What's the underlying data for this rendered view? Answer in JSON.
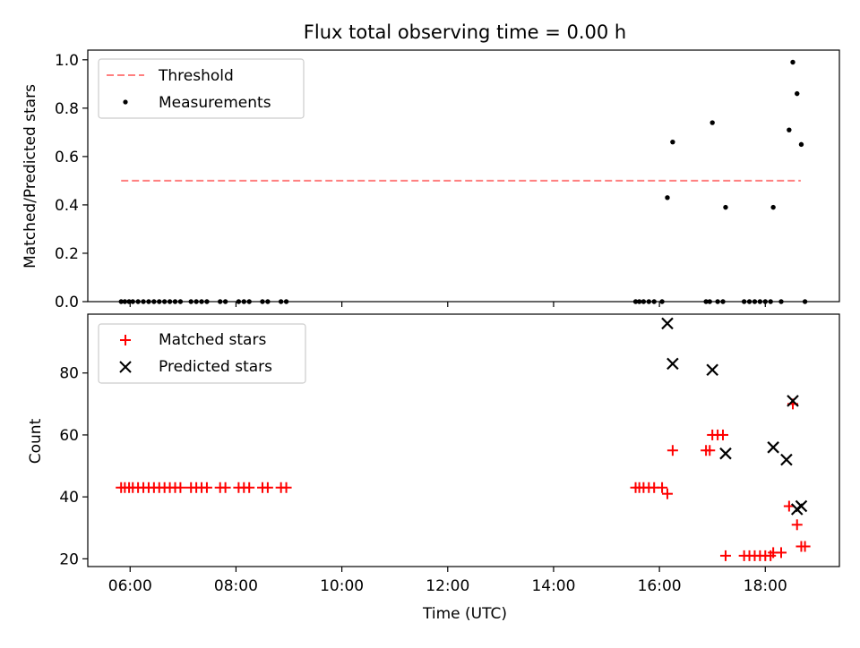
{
  "figure": {
    "title": "Flux total observing time = 0.00 h",
    "xlabel": "Time (UTC)",
    "xticks": [
      "06:00",
      "08:00",
      "10:00",
      "12:00",
      "14:00",
      "16:00",
      "18:00"
    ]
  },
  "chart_data": [
    {
      "type": "scatter",
      "ylabel": "Matched/Predicted stars",
      "xlim_hours": [
        5.2,
        19.4
      ],
      "ylim": [
        0,
        1.04
      ],
      "yticks": [
        "0.0",
        "0.2",
        "0.4",
        "0.6",
        "0.8",
        "1.0"
      ],
      "legend_position": "top-left",
      "threshold": {
        "name": "Threshold",
        "y": 0.5,
        "x_range_hours": [
          5.83,
          18.67
        ],
        "color": "#ff7f7f"
      },
      "series": [
        {
          "name": "Measurements",
          "marker": "dot",
          "color": "#000000",
          "x_hours": [
            5.83,
            5.9,
            5.98,
            6.05,
            6.15,
            6.25,
            6.35,
            6.45,
            6.55,
            6.65,
            6.75,
            6.85,
            6.95,
            7.15,
            7.25,
            7.35,
            7.45,
            7.7,
            7.8,
            8.05,
            8.15,
            8.25,
            8.5,
            8.6,
            8.85,
            8.95,
            15.55,
            15.62,
            15.7,
            15.8,
            15.9,
            16.05,
            16.15,
            16.25,
            16.88,
            16.95,
            17.0,
            17.1,
            17.2,
            17.25,
            17.6,
            17.7,
            17.8,
            17.9,
            18.0,
            18.1,
            18.15,
            18.3,
            18.45,
            18.52,
            18.6,
            18.68,
            18.75
          ],
          "y": [
            0,
            0,
            0,
            0,
            0,
            0,
            0,
            0,
            0,
            0,
            0,
            0,
            0,
            0,
            0,
            0,
            0,
            0,
            0,
            0,
            0,
            0,
            0,
            0,
            0,
            0,
            0,
            0,
            0,
            0,
            0,
            0,
            0.43,
            0.66,
            0,
            0,
            0.74,
            0,
            0,
            0.39,
            0,
            0,
            0,
            0,
            0,
            0,
            0.39,
            0,
            0.71,
            0.99,
            0.86,
            0.65,
            0
          ]
        }
      ]
    },
    {
      "type": "scatter",
      "ylabel": "Count",
      "xlim_hours": [
        5.2,
        19.4
      ],
      "ylim": [
        17.5,
        99
      ],
      "yticks": [
        "20",
        "40",
        "60",
        "80"
      ],
      "legend_position": "top-left",
      "series": [
        {
          "name": "Matched stars",
          "marker": "plus",
          "color": "#ff0000",
          "x_hours": [
            5.83,
            5.9,
            5.98,
            6.05,
            6.15,
            6.25,
            6.35,
            6.45,
            6.55,
            6.65,
            6.75,
            6.85,
            6.95,
            7.15,
            7.25,
            7.35,
            7.45,
            7.7,
            7.8,
            8.05,
            8.15,
            8.25,
            8.5,
            8.6,
            8.85,
            8.95,
            15.55,
            15.62,
            15.7,
            15.8,
            15.9,
            16.05,
            16.15,
            16.25,
            16.88,
            16.95,
            17.0,
            17.1,
            17.2,
            17.25,
            17.6,
            17.7,
            17.8,
            17.9,
            18.0,
            18.1,
            18.15,
            18.3,
            18.45,
            18.52,
            18.6,
            18.68,
            18.75
          ],
          "y": [
            43,
            43,
            43,
            43,
            43,
            43,
            43,
            43,
            43,
            43,
            43,
            43,
            43,
            43,
            43,
            43,
            43,
            43,
            43,
            43,
            43,
            43,
            43,
            43,
            43,
            43,
            43,
            43,
            43,
            43,
            43,
            43,
            41,
            55,
            55,
            55,
            60,
            60,
            60,
            21,
            21,
            21,
            21,
            21,
            21,
            21,
            22,
            22,
            37,
            70,
            31,
            24,
            24
          ]
        },
        {
          "name": "Predicted stars",
          "marker": "x",
          "color": "#000000",
          "x_hours": [
            16.15,
            16.25,
            17.0,
            17.25,
            18.15,
            18.4,
            18.52,
            18.6,
            18.68
          ],
          "y": [
            96,
            83,
            81,
            54,
            56,
            52,
            71,
            36,
            37
          ]
        }
      ]
    }
  ]
}
